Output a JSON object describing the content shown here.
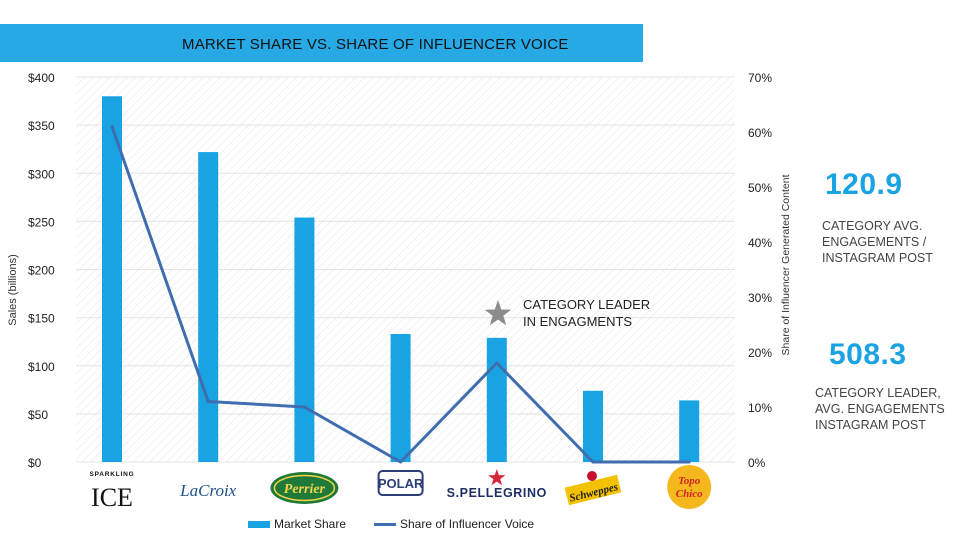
{
  "title": "MARKET SHARE VS. SHARE OF INFLUENCER VOICE",
  "chart_data": {
    "type": "bar",
    "categories": [
      "Sparkling Ice",
      "LaCroix",
      "Perrier",
      "Polar",
      "S.Pellegrino",
      "Schweppes",
      "Topo Chico"
    ],
    "series": [
      {
        "name": "Market Share",
        "axis": "left",
        "kind": "bar",
        "values": [
          380,
          322,
          254,
          133,
          129,
          74,
          64
        ]
      },
      {
        "name": "Share of Influencer Voice",
        "axis": "right",
        "kind": "line",
        "values": [
          61,
          11,
          10,
          0,
          18,
          0,
          0
        ]
      }
    ],
    "ylabel": "Sales (billions)",
    "y2label": "Share of Influencer Generated Content",
    "ylim": [
      0,
      400
    ],
    "y2lim": [
      0,
      70
    ],
    "yticks": [
      "$0",
      "$50",
      "$100",
      "$150",
      "$200",
      "$250",
      "$300",
      "$350",
      "$400"
    ],
    "y2ticks": [
      "0%",
      "10%",
      "20%",
      "30%",
      "40%",
      "50%",
      "60%",
      "70%"
    ],
    "annotation": {
      "text_line1": "CATEGORY LEADER",
      "text_line2": "IN ENGAGMENTS",
      "category": "S.Pellegrino"
    },
    "colors": {
      "bar": "#1aa3e3",
      "line": "#3f6db0",
      "grid": "#e5e5e5"
    }
  },
  "brand_logos": [
    "SPARKLING ICE",
    "LaCroix",
    "Perrier",
    "POLAR",
    "S.PELLEGRINO",
    "Schweppes",
    "Topo Chico"
  ],
  "legend": {
    "bar_label": "Market Share",
    "line_label": "Share of Influencer Voice"
  },
  "metrics": [
    {
      "value": "120.9",
      "desc_line1": "CATEGORY AVG.",
      "desc_line2": "ENGAGEMENTS /",
      "desc_line3": "INSTAGRAM POST"
    },
    {
      "value": "508.3",
      "desc_line1": "CATEGORY LEADER,",
      "desc_line2": "AVG. ENGAGEMENTS",
      "desc_line3": "INSTAGRAM POST"
    }
  ]
}
